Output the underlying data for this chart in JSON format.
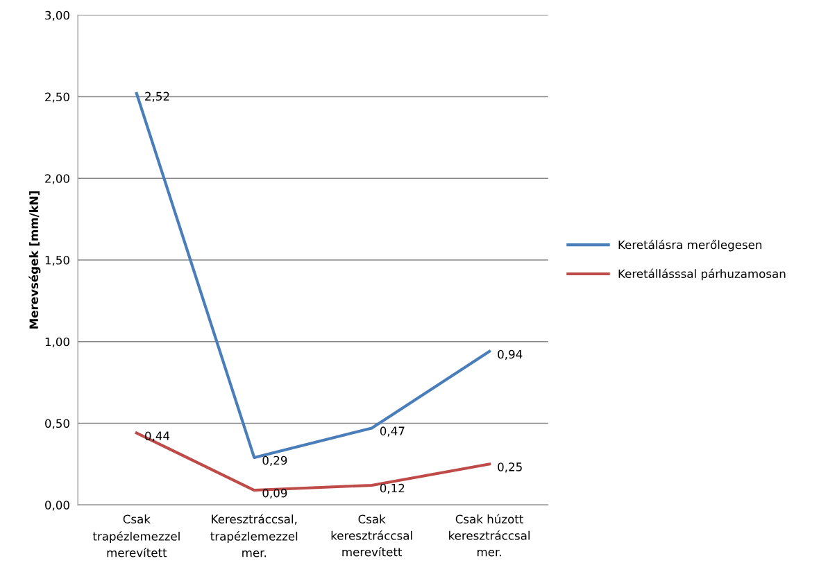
{
  "chart_data": {
    "type": "line",
    "ylabel": "Merevségek [mm/kN]",
    "categories": [
      "Csak\ntrapézlemezzel\nmerevített",
      "Keresztráccsal,\ntrapézlemezzel\nmer.",
      "Csak\nkeresztráccsal\nmerevített",
      "Csak húzott\nkeresztráccsal\nmer."
    ],
    "series": [
      {
        "name": "Keretálásra merőlegesen",
        "color": "#4a7ebb",
        "values": [
          2.52,
          0.29,
          0.47,
          0.94
        ],
        "value_labels": [
          "2,52",
          "0,29",
          "0,47",
          "0,94"
        ]
      },
      {
        "name": "Keretállásssal párhuzamosan",
        "color": "#be4b48",
        "values": [
          0.44,
          0.09,
          0.12,
          0.25
        ],
        "value_labels": [
          "0,44",
          "0,09",
          "0,12",
          "0,25"
        ]
      }
    ],
    "ylim": [
      0,
      3
    ],
    "yticks": [
      {
        "value": 0,
        "label": "0,00"
      },
      {
        "value": 0.5,
        "label": "0,50"
      },
      {
        "value": 1,
        "label": "1,00"
      },
      {
        "value": 1.5,
        "label": "1,50"
      },
      {
        "value": 2,
        "label": "2,00"
      },
      {
        "value": 2.5,
        "label": "2,50"
      },
      {
        "value": 3,
        "label": "3,00"
      }
    ],
    "grid": "y",
    "legend": "right",
    "marker": "none",
    "line_style": "solid"
  }
}
